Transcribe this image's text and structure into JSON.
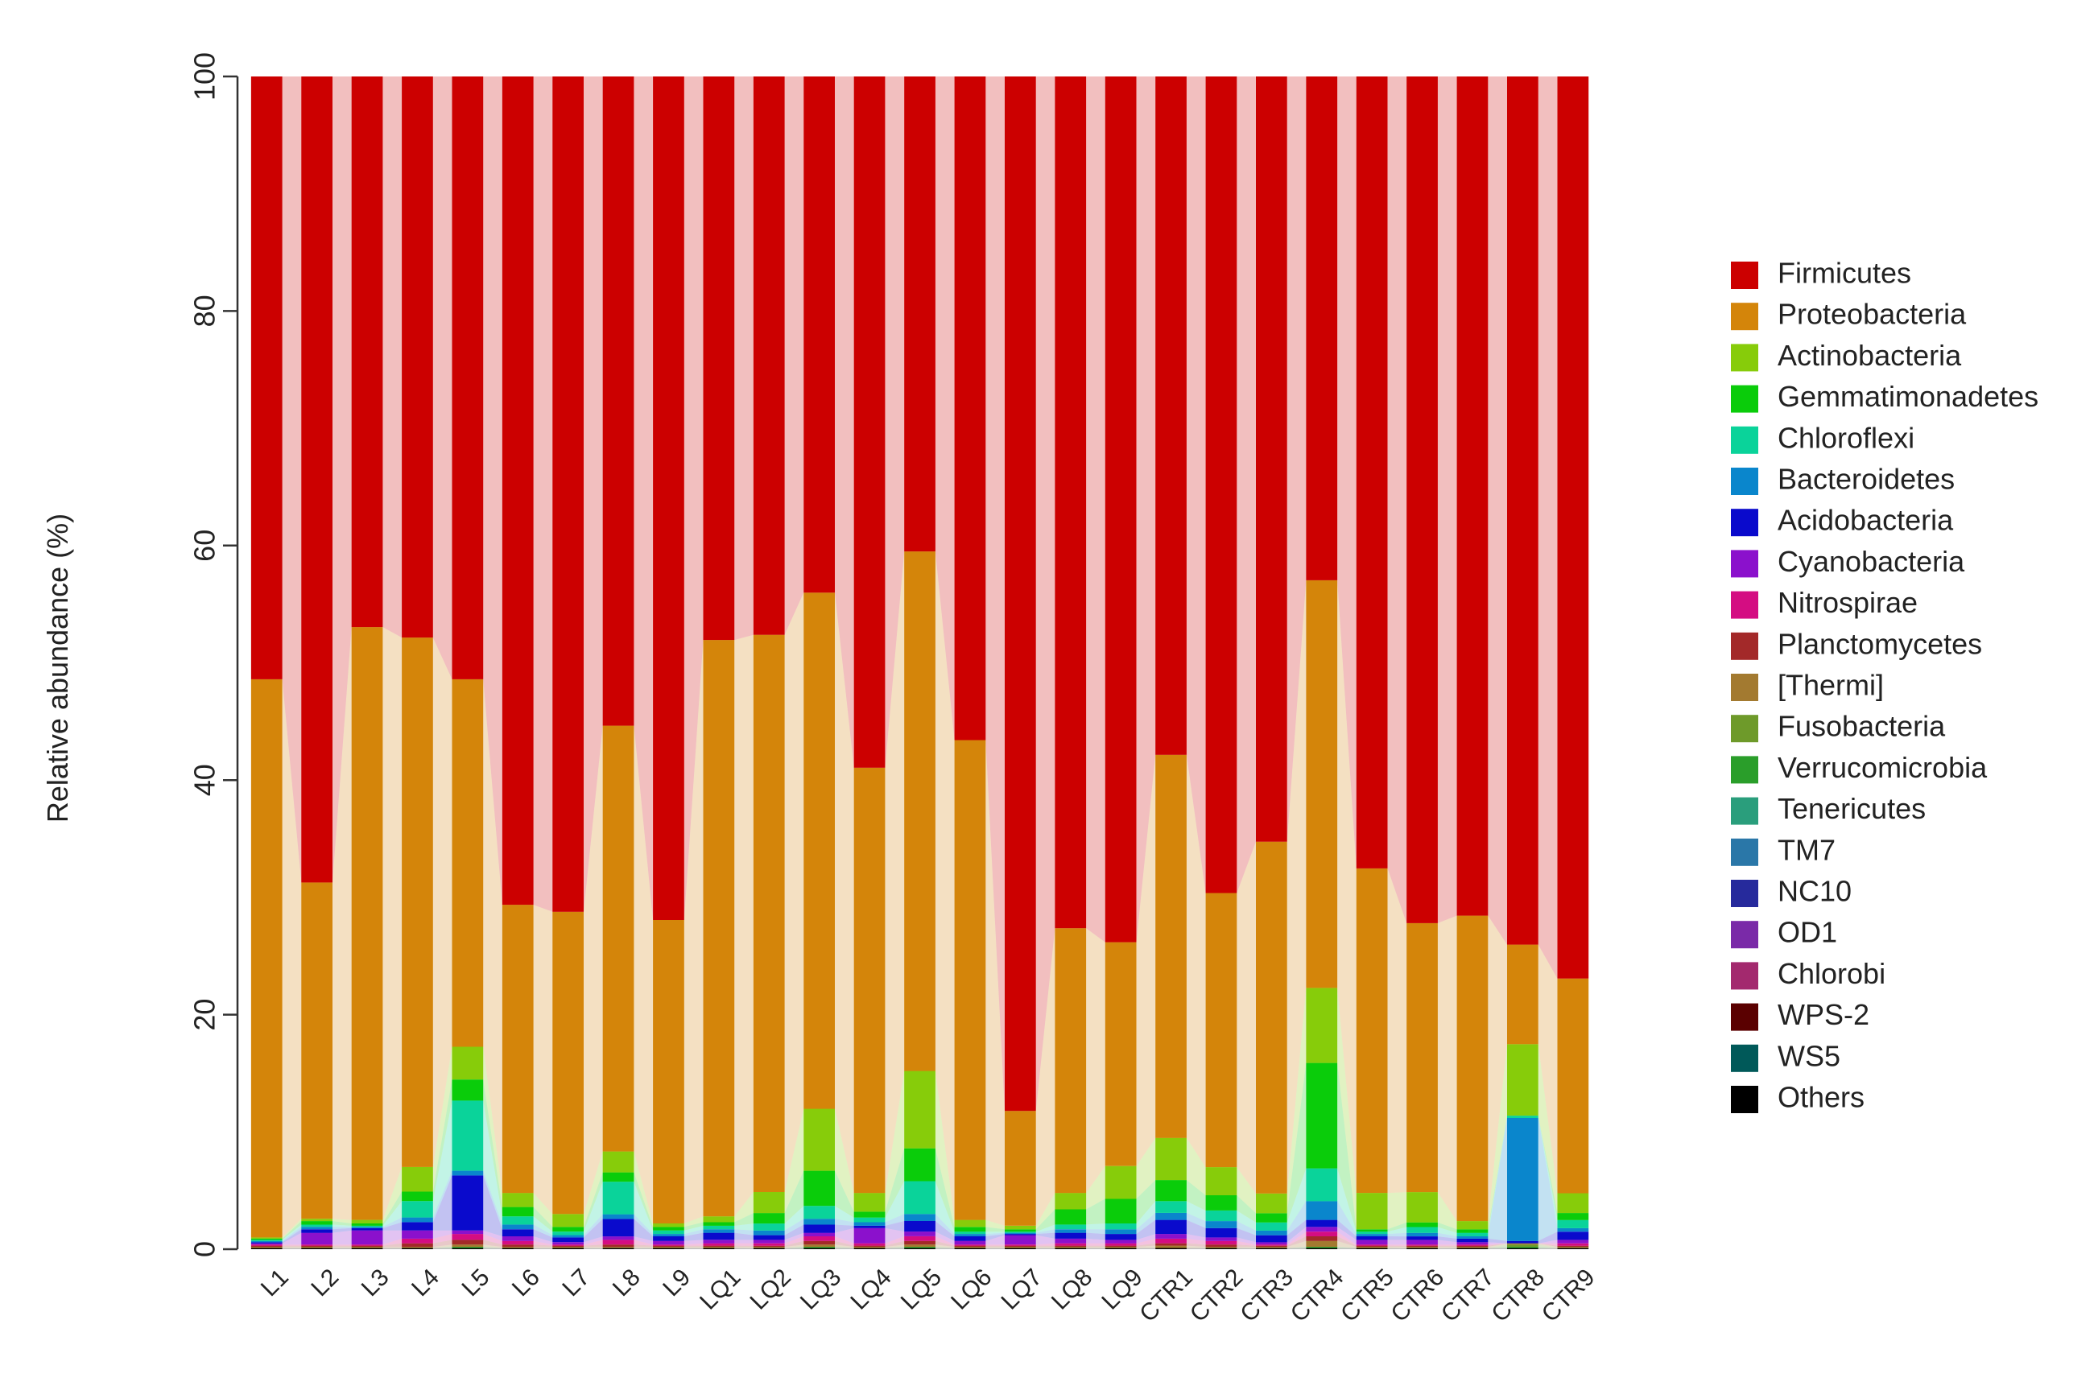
{
  "chart_data": {
    "type": "bar",
    "stacked": true,
    "ylabel": "Relative abundance (%)",
    "ylim": [
      0,
      100
    ],
    "yticks": [
      "0",
      "20",
      "40",
      "60",
      "80",
      "100"
    ],
    "grid": false,
    "legend_position": "right",
    "categories": [
      "L1",
      "L2",
      "L3",
      "L4",
      "L5",
      "L6",
      "L7",
      "L8",
      "L9",
      "LQ1",
      "LQ2",
      "LQ3",
      "LQ4",
      "LQ5",
      "LQ6",
      "LQ7",
      "LQ8",
      "LQ9",
      "CTR1",
      "CTR2",
      "CTR3",
      "CTR4",
      "CTR5",
      "CTR6",
      "CTR7",
      "CTR8",
      "CTR9"
    ],
    "series": [
      {
        "name": "Others",
        "color": "#000000",
        "values": [
          0.1,
          0.1,
          0.1,
          0.1,
          0.1,
          0.1,
          0.1,
          0.1,
          0.1,
          0.1,
          0.1,
          0.1,
          0.1,
          0.1,
          0.1,
          0.1,
          0.1,
          0.1,
          0.1,
          0.1,
          0.1,
          0.1,
          0.1,
          0.1,
          0.1,
          0.1,
          0.1
        ]
      },
      {
        "name": "WS5",
        "color": "#005959",
        "values": [
          0,
          0,
          0,
          0,
          0,
          0,
          0,
          0,
          0,
          0,
          0,
          0,
          0,
          0,
          0,
          0,
          0,
          0,
          0,
          0,
          0,
          0,
          0,
          0,
          0,
          0,
          0
        ]
      },
      {
        "name": "WPS-2",
        "color": "#5a0000",
        "values": [
          0,
          0,
          0,
          0,
          0,
          0,
          0,
          0,
          0,
          0,
          0,
          0,
          0,
          0,
          0,
          0,
          0,
          0,
          0,
          0,
          0,
          0,
          0,
          0,
          0,
          0,
          0
        ]
      },
      {
        "name": "Chlorobi",
        "color": "#a3296e",
        "values": [
          0,
          0,
          0,
          0,
          0,
          0,
          0,
          0,
          0,
          0,
          0,
          0,
          0,
          0,
          0,
          0,
          0,
          0,
          0,
          0,
          0,
          0,
          0,
          0,
          0,
          0,
          0
        ]
      },
      {
        "name": "OD1",
        "color": "#7a2aa8",
        "values": [
          0,
          0,
          0,
          0,
          0,
          0,
          0,
          0,
          0,
          0,
          0,
          0,
          0,
          0,
          0,
          0,
          0,
          0,
          0,
          0,
          0,
          0,
          0,
          0,
          0,
          0,
          0
        ]
      },
      {
        "name": "NC10",
        "color": "#262a9c",
        "values": [
          0,
          0,
          0,
          0,
          0,
          0,
          0,
          0,
          0,
          0,
          0,
          0,
          0,
          0,
          0,
          0,
          0,
          0,
          0,
          0,
          0,
          0,
          0,
          0,
          0,
          0,
          0
        ]
      },
      {
        "name": "TM7",
        "color": "#2a77a8",
        "values": [
          0,
          0,
          0,
          0,
          0,
          0,
          0,
          0,
          0,
          0,
          0,
          0,
          0,
          0,
          0,
          0,
          0,
          0,
          0,
          0,
          0,
          0,
          0,
          0,
          0,
          0,
          0
        ]
      },
      {
        "name": "Tenericutes",
        "color": "#2a9e7c",
        "values": [
          0,
          0,
          0,
          0,
          0,
          0,
          0,
          0,
          0,
          0,
          0,
          0,
          0,
          0,
          0,
          0,
          0,
          0,
          0,
          0,
          0,
          0,
          0,
          0,
          0,
          0,
          0
        ]
      },
      {
        "name": "Verrucomicrobia",
        "color": "#2a9e2a",
        "values": [
          0,
          0,
          0,
          0,
          0.1,
          0,
          0,
          0,
          0,
          0,
          0,
          0.1,
          0,
          0.1,
          0,
          0,
          0,
          0,
          0,
          0,
          0,
          0.1,
          0,
          0,
          0,
          0.1,
          0
        ]
      },
      {
        "name": "Fusobacteria",
        "color": "#6e9a2a",
        "values": [
          0,
          0,
          0,
          0,
          0,
          0,
          0,
          0,
          0,
          0,
          0,
          0,
          0,
          0,
          0,
          0,
          0,
          0,
          0,
          0,
          0,
          0,
          0,
          0,
          0,
          0.2,
          0
        ]
      },
      {
        "name": "[Thermi]",
        "color": "#a37a30",
        "values": [
          0.1,
          0.1,
          0.1,
          0.1,
          0.2,
          0.1,
          0.1,
          0.1,
          0.1,
          0.1,
          0.1,
          0.2,
          0.1,
          0.2,
          0.1,
          0.1,
          0.1,
          0.1,
          0.2,
          0.1,
          0.1,
          0.5,
          0.1,
          0.1,
          0.1,
          0.1,
          0.1
        ]
      },
      {
        "name": "Planctomycetes",
        "color": "#a32929",
        "values": [
          0.1,
          0.1,
          0.1,
          0.3,
          0.4,
          0.2,
          0.1,
          0.2,
          0.1,
          0.1,
          0.1,
          0.3,
          0.1,
          0.3,
          0.1,
          0.1,
          0.1,
          0.1,
          0.2,
          0.2,
          0.1,
          0.4,
          0.1,
          0.1,
          0.1,
          0,
          0.1
        ]
      },
      {
        "name": "Nitrospirae",
        "color": "#d40d82",
        "values": [
          0.1,
          0.1,
          0.1,
          0.4,
          0.5,
          0.3,
          0.1,
          0.4,
          0.1,
          0.2,
          0.2,
          0.4,
          0.2,
          0.4,
          0.1,
          0.1,
          0.2,
          0.2,
          0.4,
          0.3,
          0.1,
          0.4,
          0.1,
          0.1,
          0.1,
          0,
          0.2
        ]
      },
      {
        "name": "Cyanobacteria",
        "color": "#8b11cc",
        "values": [
          0.1,
          1.0,
          1.2,
          0.7,
          0.3,
          0.4,
          0.2,
          0.3,
          0.3,
          0.3,
          0.3,
          0.3,
          1.3,
          0.4,
          0.3,
          0.8,
          0.4,
          0.3,
          0.4,
          0.3,
          0.2,
          0.4,
          0.4,
          0.4,
          0.2,
          0,
          0.3
        ]
      },
      {
        "name": "Acidobacteria",
        "color": "#0a0acc",
        "values": [
          0.1,
          0.3,
          0.2,
          0.7,
          4.7,
          0.6,
          0.4,
          1.5,
          0.4,
          0.6,
          0.4,
          0.7,
          0.2,
          0.9,
          0.4,
          0.1,
          0.5,
          0.5,
          1.2,
          0.8,
          0.6,
          0.6,
          0.3,
          0.3,
          0.3,
          0.2,
          0.7
        ]
      },
      {
        "name": "Bacteroidetes",
        "color": "#0a86cc",
        "values": [
          0.1,
          0.2,
          0.1,
          0.4,
          0.4,
          0.4,
          0.2,
          0.4,
          0.2,
          0.3,
          0.4,
          0.5,
          0.3,
          0.6,
          0.2,
          0.1,
          0.3,
          0.4,
          0.6,
          0.6,
          0.4,
          1.6,
          0.2,
          0.3,
          0.2,
          10.5,
          0.3
        ]
      },
      {
        "name": "Chloroflexi",
        "color": "#0ad39a",
        "values": [
          0.1,
          0.2,
          0.1,
          1.4,
          6.0,
          0.7,
          0.3,
          2.8,
          0.3,
          0.3,
          0.6,
          1.1,
          0.4,
          2.8,
          0.2,
          0.1,
          0.4,
          0.5,
          1.0,
          0.9,
          0.7,
          2.8,
          0.2,
          0.5,
          0.3,
          0.2,
          0.7
        ]
      },
      {
        "name": "Gemmatimonadetes",
        "color": "#0acc0a",
        "values": [
          0.1,
          0.3,
          0.2,
          0.8,
          1.8,
          0.8,
          0.4,
          0.8,
          0.3,
          0.3,
          0.9,
          3.0,
          0.5,
          2.8,
          0.4,
          0.2,
          1.3,
          2.1,
          1.8,
          1.3,
          0.8,
          9.0,
          0.2,
          0.4,
          0.3,
          0,
          0.6
        ]
      },
      {
        "name": "Actinobacteria",
        "color": "#87cc0a",
        "values": [
          0.1,
          0.2,
          0.3,
          2.1,
          2.8,
          1.2,
          1.1,
          1.8,
          0.3,
          0.5,
          1.8,
          5.3,
          1.6,
          6.6,
          0.6,
          0.3,
          1.4,
          2.8,
          3.6,
          2.4,
          1.7,
          6.4,
          3.1,
          2.6,
          0.7,
          6.1,
          1.7
        ]
      },
      {
        "name": "Proteobacteria",
        "color": "#d4850a",
        "values": [
          47.6,
          28.7,
          50.6,
          45.1,
          31.4,
          24.6,
          25.8,
          36.6,
          25.9,
          49.2,
          47.8,
          44.1,
          36.3,
          44.3,
          41.0,
          9.8,
          22.6,
          19.1,
          32.7,
          23.4,
          30.3,
          34.8,
          27.7,
          23.1,
          26.1,
          8.5,
          18.4
        ]
      },
      {
        "name": "Firmicutes",
        "color": "#cc0000",
        "values": [
          51.4,
          68.8,
          47.0,
          47.8,
          51.5,
          70.7,
          71.3,
          55.8,
          72.0,
          48.1,
          47.9,
          44.1,
          59.0,
          40.5,
          56.7,
          88.3,
          72.7,
          73.9,
          57.9,
          69.7,
          65.9,
          43.0,
          67.6,
          72.7,
          71.7,
          74.1,
          77.3
        ]
      }
    ]
  }
}
